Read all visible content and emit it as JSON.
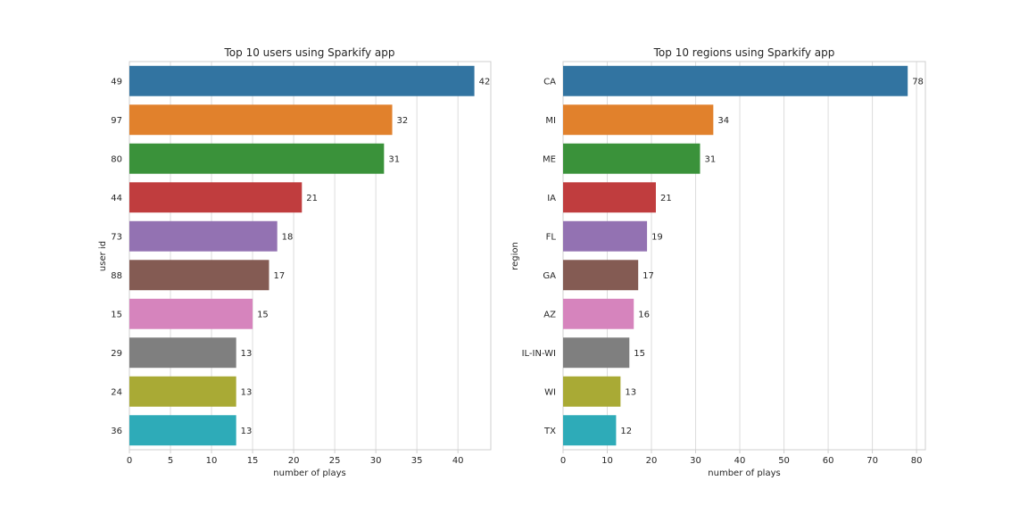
{
  "chart_data": [
    {
      "type": "bar",
      "orientation": "horizontal",
      "title": "Top 10 users using Sparkify app",
      "xlabel": "number of plays",
      "ylabel": "user id",
      "xlim": [
        0,
        44
      ],
      "xticks": [
        0,
        5,
        10,
        15,
        20,
        25,
        30,
        35,
        40
      ],
      "grid": true,
      "categories": [
        "49",
        "97",
        "80",
        "44",
        "73",
        "88",
        "15",
        "29",
        "24",
        "36"
      ],
      "values": [
        42,
        32,
        31,
        21,
        18,
        17,
        15,
        13,
        13,
        13
      ],
      "colors": [
        "#3274a1",
        "#e1812c",
        "#3a923a",
        "#c03d3e",
        "#9372b2",
        "#845b53",
        "#d684bd",
        "#7f7f7f",
        "#a9aa35",
        "#2eabb8"
      ]
    },
    {
      "type": "bar",
      "orientation": "horizontal",
      "title": "Top 10 regions using Sparkify app",
      "xlabel": "number of plays",
      "ylabel": "region",
      "xlim": [
        0,
        82
      ],
      "xticks": [
        0,
        10,
        20,
        30,
        40,
        50,
        60,
        70,
        80
      ],
      "grid": true,
      "categories": [
        "CA",
        "MI",
        "ME",
        "IA",
        "FL",
        "GA",
        "AZ",
        "IL-IN-WI",
        "WI",
        "TX"
      ],
      "values": [
        78,
        34,
        31,
        21,
        19,
        17,
        16,
        15,
        13,
        12
      ],
      "colors": [
        "#3274a1",
        "#e1812c",
        "#3a923a",
        "#c03d3e",
        "#9372b2",
        "#845b53",
        "#d684bd",
        "#7f7f7f",
        "#a9aa35",
        "#2eabb8"
      ]
    }
  ]
}
